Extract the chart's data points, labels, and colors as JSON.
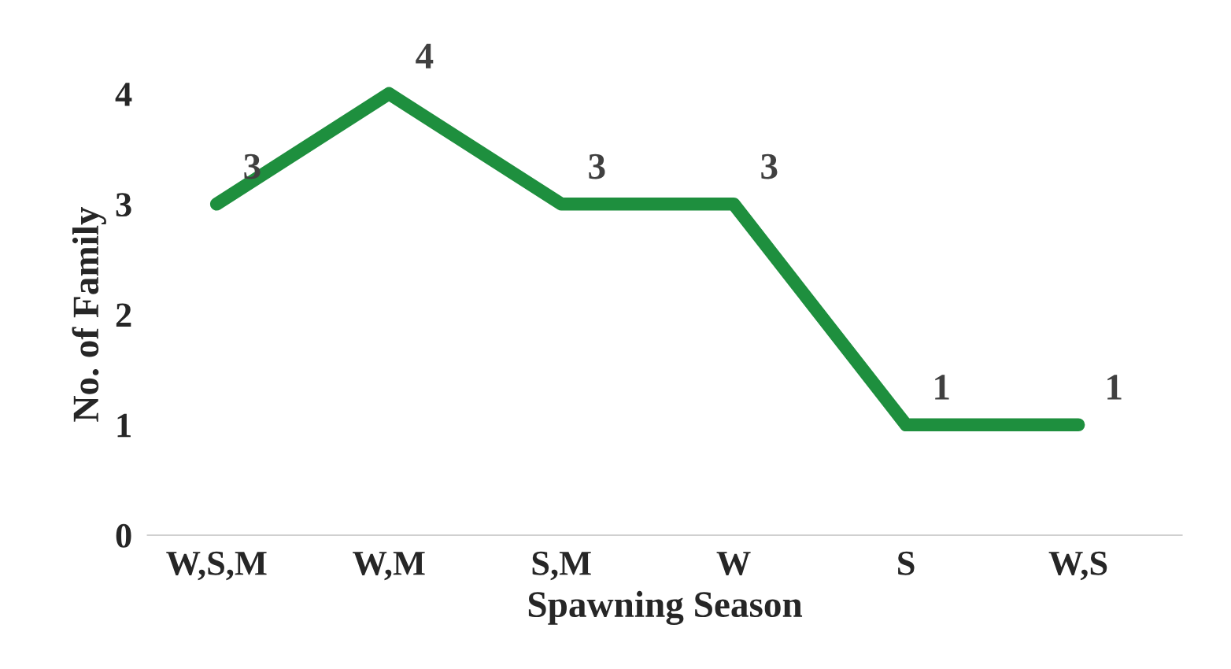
{
  "chart_data": {
    "type": "line",
    "xlabel": "Spawning Season",
    "ylabel": "No. of Family",
    "categories": [
      "W,S,M",
      "W,M",
      "S,M",
      "W",
      "S",
      "W,S"
    ],
    "series": [
      {
        "color": "#1e8f3e",
        "values": [
          3,
          4,
          3,
          3,
          1,
          1
        ]
      }
    ],
    "ylim": [
      0,
      4
    ],
    "yticks": [
      0,
      1,
      2,
      3,
      4
    ],
    "data_labels": true,
    "grid": false,
    "marker": "none",
    "line_style": "solid"
  }
}
